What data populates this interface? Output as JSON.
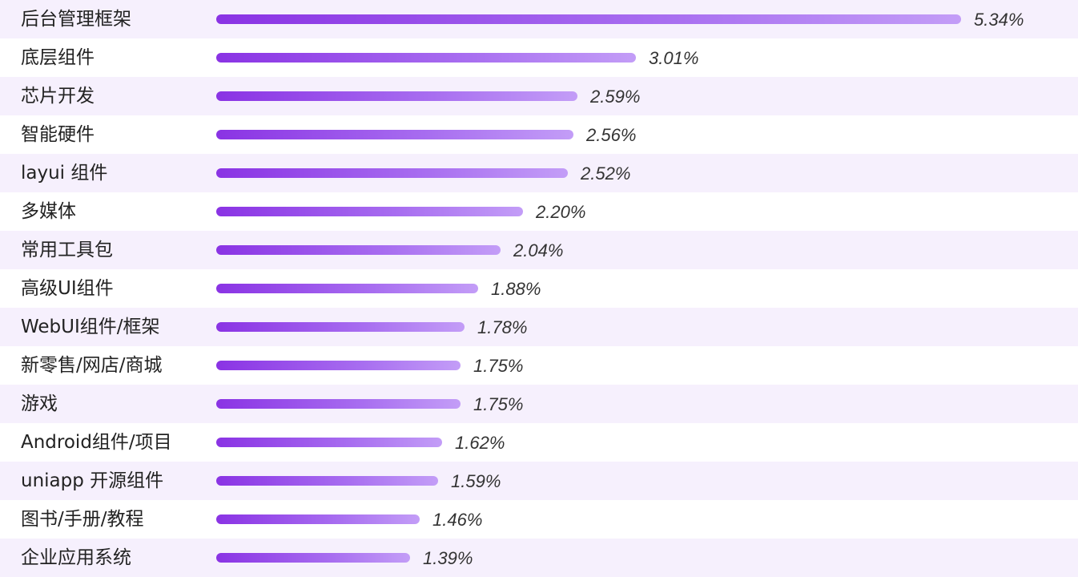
{
  "chart_data": {
    "type": "bar",
    "orientation": "horizontal",
    "categories": [
      "后台管理框架",
      "底层组件",
      "芯片开发",
      "智能硬件",
      "layui 组件",
      "多媒体",
      "常用工具包",
      "高级UI组件",
      "WebUI组件/框架",
      "新零售/网店/商城",
      "游戏",
      "Android组件/项目",
      "uniapp 开源组件",
      "图书/手册/教程",
      "企业应用系统"
    ],
    "values": [
      5.34,
      3.01,
      2.59,
      2.56,
      2.52,
      2.2,
      2.04,
      1.88,
      1.78,
      1.75,
      1.75,
      1.62,
      1.59,
      1.46,
      1.39
    ],
    "value_labels": [
      "5.34%",
      "3.01%",
      "2.59%",
      "2.56%",
      "2.52%",
      "2.20%",
      "2.04%",
      "1.88%",
      "1.78%",
      "1.75%",
      "1.75%",
      "1.62%",
      "1.59%",
      "1.46%",
      "1.39%"
    ],
    "unit": "%",
    "grid": false,
    "colors": {
      "bar_start": "#8a33e4",
      "bar_end": "#c39df7",
      "row_alt": "#f6f0fd"
    }
  }
}
